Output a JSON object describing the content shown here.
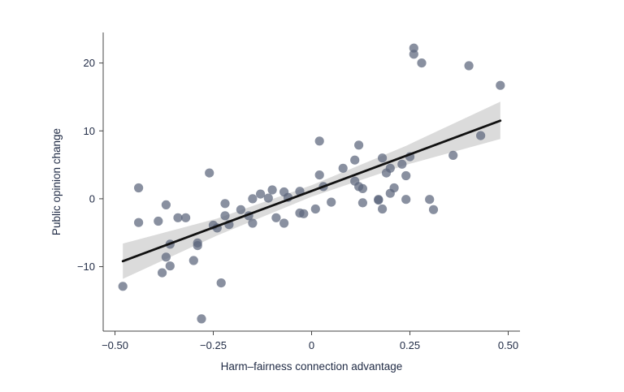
{
  "chart_data": {
    "type": "scatter",
    "xlabel": "Harm–fairness connection advantage",
    "ylabel": "Public opinion change",
    "xlim": [
      -0.53,
      0.53
    ],
    "ylim": [
      -19.5,
      24.5
    ],
    "xticks": [
      {
        "value": -0.5,
        "label": "−0.50"
      },
      {
        "value": -0.25,
        "label": "−0.25"
      },
      {
        "value": 0.0,
        "label": "0"
      },
      {
        "value": 0.25,
        "label": "0.25"
      },
      {
        "value": 0.5,
        "label": "0.50"
      }
    ],
    "yticks": [
      {
        "value": -10,
        "label": "−10"
      },
      {
        "value": 0,
        "label": "0"
      },
      {
        "value": 10,
        "label": "10"
      },
      {
        "value": 20,
        "label": "20"
      }
    ],
    "grid": false,
    "colors": {
      "points": "#5b657c",
      "fit_line": "#111111",
      "ci_band": "#d9d9d9",
      "axis": "#444444"
    },
    "points": [
      {
        "x": -0.48,
        "y": -12.9
      },
      {
        "x": -0.44,
        "y": 1.6
      },
      {
        "x": -0.44,
        "y": -3.5
      },
      {
        "x": -0.39,
        "y": -3.3
      },
      {
        "x": -0.38,
        "y": -10.9
      },
      {
        "x": -0.37,
        "y": -8.6
      },
      {
        "x": -0.37,
        "y": -0.9
      },
      {
        "x": -0.36,
        "y": -9.9
      },
      {
        "x": -0.36,
        "y": -6.7
      },
      {
        "x": -0.34,
        "y": -2.8
      },
      {
        "x": -0.32,
        "y": -2.8
      },
      {
        "x": -0.3,
        "y": -9.1
      },
      {
        "x": -0.29,
        "y": -6.5
      },
      {
        "x": -0.29,
        "y": -6.9
      },
      {
        "x": -0.28,
        "y": -17.7
      },
      {
        "x": -0.26,
        "y": 3.8
      },
      {
        "x": -0.25,
        "y": -3.9
      },
      {
        "x": -0.24,
        "y": -4.3
      },
      {
        "x": -0.23,
        "y": -12.4
      },
      {
        "x": -0.22,
        "y": -0.7
      },
      {
        "x": -0.22,
        "y": -2.5
      },
      {
        "x": -0.21,
        "y": -3.8
      },
      {
        "x": -0.18,
        "y": -1.6
      },
      {
        "x": -0.16,
        "y": -2.5
      },
      {
        "x": -0.15,
        "y": 0.0
      },
      {
        "x": -0.15,
        "y": -3.6
      },
      {
        "x": -0.13,
        "y": 0.7
      },
      {
        "x": -0.11,
        "y": 0.1
      },
      {
        "x": -0.1,
        "y": 1.3
      },
      {
        "x": -0.09,
        "y": -2.8
      },
      {
        "x": -0.07,
        "y": 1.0
      },
      {
        "x": -0.07,
        "y": -3.6
      },
      {
        "x": -0.06,
        "y": 0.2
      },
      {
        "x": -0.03,
        "y": 1.1
      },
      {
        "x": -0.03,
        "y": -2.1
      },
      {
        "x": -0.02,
        "y": -2.2
      },
      {
        "x": 0.01,
        "y": -1.5
      },
      {
        "x": 0.02,
        "y": 8.5
      },
      {
        "x": 0.02,
        "y": 3.5
      },
      {
        "x": 0.03,
        "y": 1.8
      },
      {
        "x": 0.05,
        "y": -0.5
      },
      {
        "x": 0.08,
        "y": 4.5
      },
      {
        "x": 0.11,
        "y": 5.7
      },
      {
        "x": 0.11,
        "y": 2.6
      },
      {
        "x": 0.12,
        "y": 7.9
      },
      {
        "x": 0.12,
        "y": 1.8
      },
      {
        "x": 0.13,
        "y": 1.5
      },
      {
        "x": 0.13,
        "y": -0.6
      },
      {
        "x": 0.17,
        "y": -0.1
      },
      {
        "x": 0.17,
        "y": -0.2
      },
      {
        "x": 0.18,
        "y": 6.0
      },
      {
        "x": 0.18,
        "y": -1.5
      },
      {
        "x": 0.19,
        "y": 3.8
      },
      {
        "x": 0.2,
        "y": 4.5
      },
      {
        "x": 0.2,
        "y": 0.8
      },
      {
        "x": 0.21,
        "y": 1.6
      },
      {
        "x": 0.23,
        "y": 5.1
      },
      {
        "x": 0.24,
        "y": 3.4
      },
      {
        "x": 0.24,
        "y": -0.1
      },
      {
        "x": 0.25,
        "y": 6.2
      },
      {
        "x": 0.26,
        "y": 22.2
      },
      {
        "x": 0.26,
        "y": 21.3
      },
      {
        "x": 0.28,
        "y": 20.0
      },
      {
        "x": 0.3,
        "y": -0.1
      },
      {
        "x": 0.31,
        "y": -1.6
      },
      {
        "x": 0.36,
        "y": 6.4
      },
      {
        "x": 0.4,
        "y": 19.6
      },
      {
        "x": 0.43,
        "y": 9.3
      },
      {
        "x": 0.48,
        "y": 16.7
      }
    ],
    "fit_line": {
      "x": [
        -0.48,
        0.48
      ],
      "y": [
        -9.2,
        11.5
      ]
    },
    "ci_band": [
      {
        "x": -0.48,
        "lower": -11.8,
        "upper": -6.6
      },
      {
        "x": -0.24,
        "lower": -5.4,
        "upper": -2.9
      },
      {
        "x": 0.0,
        "lower": 0.3,
        "upper": 2.0
      },
      {
        "x": 0.24,
        "lower": 5.0,
        "upper": 7.8
      },
      {
        "x": 0.48,
        "lower": 8.8,
        "upper": 14.3
      }
    ]
  }
}
